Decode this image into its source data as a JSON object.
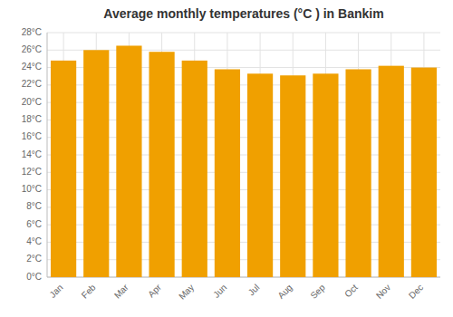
{
  "chart_data": {
    "type": "bar",
    "title": "Average monthly temperatures (°C ) in Bankim",
    "categories": [
      "Jan",
      "Feb",
      "Mar",
      "Apr",
      "May",
      "Jun",
      "Jul",
      "Aug",
      "Sep",
      "Oct",
      "Nov",
      "Dec"
    ],
    "values": [
      24.8,
      26.0,
      26.5,
      25.8,
      24.8,
      23.8,
      23.3,
      23.1,
      23.3,
      23.8,
      24.2,
      24.0
    ],
    "color": "#F0A000",
    "ylim": [
      0,
      28
    ],
    "yticks": [
      {
        "value": 0,
        "label": "0°C"
      },
      {
        "value": 2,
        "label": "2°C"
      },
      {
        "value": 4,
        "label": "4°C"
      },
      {
        "value": 6,
        "label": "6°C"
      },
      {
        "value": 8,
        "label": "8°C"
      },
      {
        "value": 10,
        "label": "10°C"
      },
      {
        "value": 12,
        "label": "12°C"
      },
      {
        "value": 14,
        "label": "14°C"
      },
      {
        "value": 16,
        "label": "16°C"
      },
      {
        "value": 18,
        "label": "18°C"
      },
      {
        "value": 20,
        "label": "20°C"
      },
      {
        "value": 22,
        "label": "22°C"
      },
      {
        "value": 24,
        "label": "24°C"
      },
      {
        "value": 26,
        "label": "26°C"
      },
      {
        "value": 28,
        "label": "28°C"
      }
    ],
    "grid": true
  }
}
